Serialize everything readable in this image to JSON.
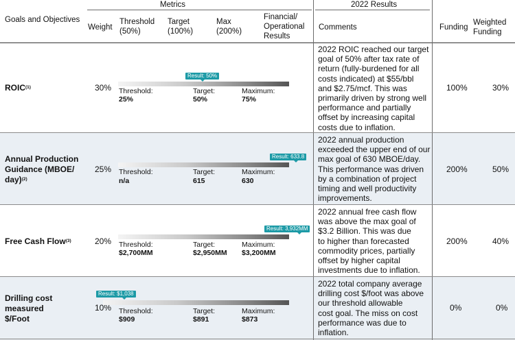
{
  "header": {
    "metrics": "Metrics",
    "results_2022": "2022 Results",
    "goals_and_objectives": "Goals and Objectives",
    "weight": "Weight",
    "threshold_1": "Threshold",
    "threshold_2": "(50%)",
    "target_1": "Target",
    "target_2": "(100%)",
    "max_1": "Max",
    "max_2": "(200%)",
    "fin_1": "Financial/",
    "fin_2": "Operational",
    "fin_3": "Results",
    "comments": "Comments",
    "funding": "Funding",
    "weighted_1": "Weighted",
    "weighted_2": "Funding"
  },
  "rows": [
    {
      "goal_lines": [
        "ROIC"
      ],
      "footnote": "(1)",
      "weight": "30%",
      "result_badge": "Result: 50%",
      "result_level": 0.5,
      "threshold_label": "Threshold:",
      "threshold_value": "25%",
      "target_label": "Target:",
      "target_value": "50%",
      "max_label": "Maximum:",
      "max_value": "75%",
      "comment_lines": [
        "2022 ROIC reached our target",
        "goal of 50% after tax rate of",
        "return (fully-burdened for all",
        "costs indicated) at $55/bbl",
        "and $2.75/mcf.  This was",
        "primarily driven by strong well",
        "performance and partially",
        "offset by increasing capital",
        "costs due to inflation."
      ],
      "funding": "100%",
      "weighted_funding": "30%"
    },
    {
      "goal_lines": [
        "Annual Production",
        "Guidance (MBOE/",
        "day)"
      ],
      "footnote": "(2)",
      "weight": "25%",
      "result_badge": "Result: 633.8",
      "result_level": 633.8,
      "threshold_label": "Threshold:",
      "threshold_value": "n/a",
      "target_label": "Target:",
      "target_value": "615",
      "max_label": "Maximum:",
      "max_value": "630",
      "comment_lines": [
        "2022 annual production",
        "exceeded the upper end of our",
        "max goal of 630 MBOE/day.",
        "This performance was driven",
        "by a combination of project",
        "timing and well productivity",
        "improvements."
      ],
      "funding": "200%",
      "weighted_funding": "50%"
    },
    {
      "goal_lines": [
        "Free Cash Flow"
      ],
      "footnote": "(3)",
      "weight": "20%",
      "result_badge": "Result: 3,932MM",
      "result_level": 3932,
      "threshold_label": "Threshold:",
      "threshold_value": "$2,700MM",
      "target_label": "Target:",
      "target_value": "$2,950MM",
      "max_label": "Maximum:",
      "max_value": "$3,200MM",
      "comment_lines": [
        "2022 annual free cash flow",
        "was above the max goal of",
        "$3.2 Billion.  This was due",
        "to higher than forecasted",
        "commodity prices, partially",
        "offset by higher capital",
        "investments due to inflation."
      ],
      "funding": "200%",
      "weighted_funding": "40%"
    },
    {
      "goal_lines": [
        "Drilling cost",
        "measured",
        "$/Foot"
      ],
      "footnote": "",
      "weight": "10%",
      "result_badge": "Result: $1,038",
      "result_level": 1038,
      "threshold_label": "Threshold:",
      "threshold_value": "$909",
      "target_label": "Target:",
      "target_value": "$891",
      "max_label": "Maximum:",
      "max_value": "$873",
      "comment_lines": [
        "2022 total company average",
        "drilling cost $/foot was above",
        "our threshold allowable",
        "cost goal.  The miss on cost",
        "performance was due to",
        "inflation."
      ],
      "funding": "0%",
      "weighted_funding": "0%"
    }
  ]
}
